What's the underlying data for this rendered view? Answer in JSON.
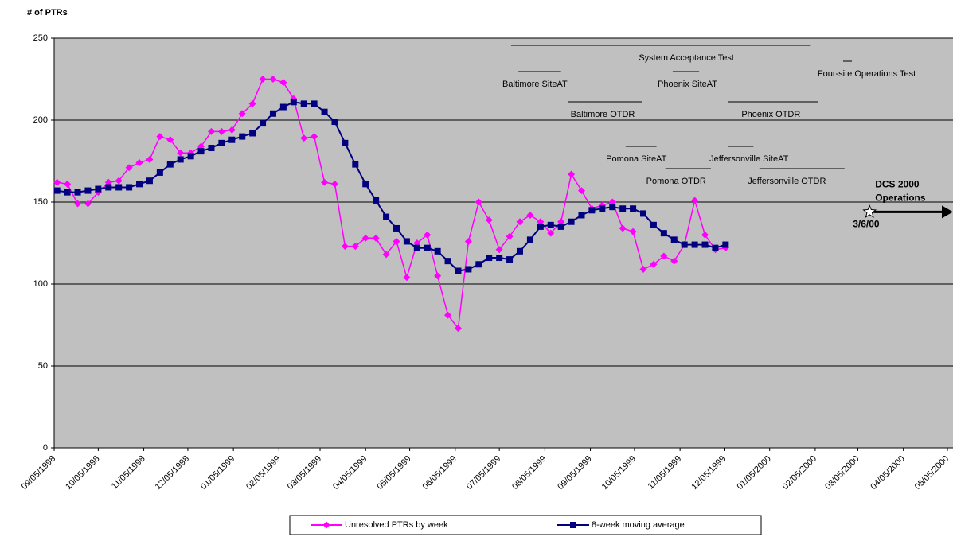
{
  "chart_data": {
    "type": "line",
    "y_axis_label": "# of PTRs",
    "x": [
      "09/07/1998",
      "09/14/1998",
      "09/21/1998",
      "09/28/1998",
      "10/05/1998",
      "10/12/1998",
      "10/19/1998",
      "10/26/1998",
      "11/02/1998",
      "11/09/1998",
      "11/16/1998",
      "11/23/1998",
      "11/30/1998",
      "12/07/1998",
      "12/14/1998",
      "12/21/1998",
      "12/28/1998",
      "01/04/1999",
      "01/11/1999",
      "01/18/1999",
      "01/25/1999",
      "02/01/1999",
      "02/08/1999",
      "02/15/1999",
      "02/22/1999",
      "03/01/1999",
      "03/08/1999",
      "03/15/1999",
      "03/22/1999",
      "03/29/1999",
      "04/05/1999",
      "04/12/1999",
      "04/19/1999",
      "04/26/1999",
      "05/03/1999",
      "05/10/1999",
      "05/17/1999",
      "05/24/1999",
      "05/31/1999",
      "06/07/1999",
      "06/14/1999",
      "06/21/1999",
      "06/28/1999",
      "07/05/1999",
      "07/12/1999",
      "07/19/1999",
      "07/26/1999",
      "08/02/1999",
      "08/09/1999",
      "08/16/1999",
      "08/23/1999",
      "08/30/1999",
      "09/06/1999",
      "09/13/1999",
      "09/20/1999",
      "09/27/1999",
      "10/04/1999",
      "10/11/1999",
      "10/18/1999",
      "10/25/1999",
      "11/01/1999",
      "11/08/1999",
      "11/15/1999",
      "11/22/1999",
      "11/29/1999",
      "12/06/1999"
    ],
    "series": [
      {
        "name": "Unresolved PTRs by week",
        "color": "#ff00ff",
        "marker": "diamond",
        "values": [
          162,
          161,
          149,
          149,
          156,
          162,
          163,
          171,
          174,
          176,
          190,
          188,
          180,
          180,
          184,
          193,
          193,
          194,
          204,
          210,
          225,
          225,
          223,
          213,
          189,
          190,
          162,
          161,
          123,
          123,
          128,
          128,
          118,
          126,
          104,
          125,
          130,
          105,
          81,
          73,
          126,
          150,
          139,
          121,
          129,
          138,
          142,
          138,
          131,
          138,
          167,
          157,
          146,
          148,
          150,
          134,
          132,
          109,
          112,
          117,
          114,
          124,
          151,
          130,
          121,
          122
        ]
      },
      {
        "name": "8-week moving average",
        "color": "#000080",
        "marker": "square",
        "values": [
          157,
          156,
          156,
          157,
          158,
          159,
          159,
          159,
          161,
          163,
          168,
          173,
          176,
          178,
          181,
          183,
          186,
          188,
          190,
          192,
          198,
          204,
          208,
          211,
          210,
          210,
          205,
          199,
          186,
          173,
          161,
          151,
          141,
          134,
          126,
          122,
          122,
          120,
          114,
          108,
          109,
          112,
          116,
          116,
          115,
          120,
          127,
          135,
          136,
          135,
          138,
          142,
          145,
          146,
          147,
          146,
          146,
          143,
          136,
          131,
          127,
          124,
          124,
          124,
          122,
          124
        ]
      }
    ],
    "xlim": [
      "09/05/1998",
      "05/05/2000"
    ],
    "xticks": [
      "09/05/1998",
      "10/05/1998",
      "11/05/1998",
      "12/05/1998",
      "01/05/1999",
      "02/05/1999",
      "03/05/1999",
      "04/05/1999",
      "05/05/1999",
      "06/05/1999",
      "07/05/1999",
      "08/05/1999",
      "09/05/1999",
      "10/05/1999",
      "11/05/1999",
      "12/05/1999",
      "01/05/2000",
      "02/05/2000",
      "03/05/2000",
      "04/05/2000",
      "05/05/2000"
    ],
    "ylim": [
      0,
      250
    ],
    "yticks": [
      0,
      50,
      100,
      150,
      200,
      250
    ],
    "grid": true,
    "phases": [
      {
        "label": "System Acceptance Test",
        "start": "07/13/1999",
        "end": "02/02/2000"
      },
      {
        "label": "Baltimore SiteAT",
        "start": "07/18/1999",
        "end": "08/16/1999"
      },
      {
        "label": "Phoenix SiteAT",
        "start": "10/31/1999",
        "end": "11/18/1999"
      },
      {
        "label": "Four-site Operations Test",
        "start": "02/24/2000",
        "end": "03/01/2000"
      },
      {
        "label": "Baltimore OTDR",
        "start": "08/21/1999",
        "end": "10/10/1999"
      },
      {
        "label": "Phoenix OTDR",
        "start": "12/08/1999",
        "end": "02/07/2000"
      },
      {
        "label": "Pomona SiteAT",
        "start": "09/29/1999",
        "end": "10/20/1999"
      },
      {
        "label": "Jeffersonville SiteAT",
        "start": "12/08/1999",
        "end": "12/25/1999"
      },
      {
        "label": "Pomona OTDR",
        "start": "10/26/1999",
        "end": "11/26/1999"
      },
      {
        "label": "Jeffersonville OTDR",
        "start": "12/29/1999",
        "end": "02/25/2000"
      }
    ],
    "milestone": {
      "title": [
        "DCS 2000",
        "Operations"
      ],
      "x": "03/13/2000",
      "date_label": "3/6/00",
      "value": 144
    }
  }
}
